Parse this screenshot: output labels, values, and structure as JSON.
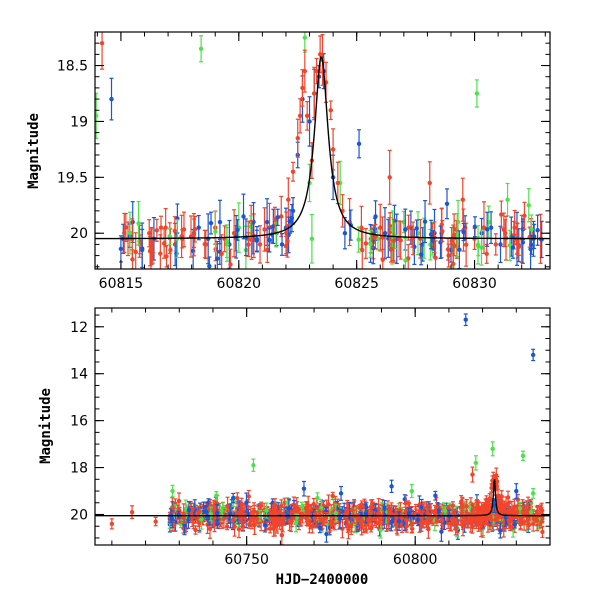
{
  "chart_data": [
    {
      "type": "scatter",
      "panel": "top",
      "title": "",
      "xlabel": "",
      "ylabel": "Magnitude",
      "xlim": [
        60813.9,
        60833.2
      ],
      "ylim": [
        20.32,
        18.2
      ],
      "y_inverted": true,
      "x_ticks": [
        60815,
        60820,
        60825,
        60830
      ],
      "y_ticks": [
        18.5,
        19,
        19.5,
        20
      ],
      "x_tick_labels": [
        "60815",
        "60820",
        "60825",
        "60830"
      ],
      "y_tick_labels": [
        "18.5",
        "19",
        "19.5",
        "20"
      ],
      "grid": false,
      "legend": "none",
      "colors": {
        "blue": "#1a56d6",
        "red": "#f2452b",
        "green": "#4be24b",
        "fit": "#000000"
      },
      "series": [
        {
          "color": "blue",
          "points": [
            [
              60814.6,
              18.8
            ],
            [
              60815.1,
              20.05
            ],
            [
              60815.5,
              19.9
            ],
            [
              60815.9,
              20.15
            ],
            [
              60816.4,
              20.05
            ],
            [
              60817.3,
              20.1
            ],
            [
              60818.3,
              19.95
            ],
            [
              60818.7,
              20.05
            ],
            [
              60819.2,
              19.9
            ],
            [
              60819.6,
              20.1
            ],
            [
              60820.2,
              19.85
            ],
            [
              60820.6,
              20.05
            ],
            [
              60821.2,
              19.9
            ],
            [
              60821.6,
              20.0
            ],
            [
              60822.0,
              19.95
            ],
            [
              60822.3,
              19.8
            ],
            [
              60822.5,
              19.3
            ],
            [
              60822.7,
              18.8
            ],
            [
              60823.0,
              19.0
            ],
            [
              60823.2,
              18.75
            ],
            [
              60823.4,
              18.6
            ],
            [
              60823.6,
              18.55
            ],
            [
              60824.0,
              19.5
            ],
            [
              60824.5,
              20.0
            ],
            [
              60825.1,
              19.2
            ],
            [
              60825.8,
              19.85
            ],
            [
              60826.2,
              20.0
            ],
            [
              60826.7,
              20.05
            ],
            [
              60827.3,
              19.95
            ],
            [
              60827.8,
              20.1
            ],
            [
              60828.3,
              20.0
            ],
            [
              60829.0,
              20.15
            ],
            [
              60829.6,
              19.95
            ],
            [
              60830.3,
              20.0
            ],
            [
              60830.7,
              19.95
            ],
            [
              60831.1,
              20.1
            ],
            [
              60831.8,
              20.05
            ],
            [
              60832.5,
              20.05
            ]
          ]
        },
        {
          "color": "green",
          "points": [
            [
              60813.95,
              18.95
            ],
            [
              60818.4,
              18.35
            ],
            [
              60819.5,
              20.1
            ],
            [
              60820.0,
              19.95
            ],
            [
              60820.3,
              20.15
            ],
            [
              60822.8,
              18.25
            ],
            [
              60823.0,
              19.55
            ],
            [
              60823.1,
              20.05
            ],
            [
              60824.3,
              19.55
            ],
            [
              60825.9,
              20.05
            ],
            [
              60826.5,
              20.1
            ],
            [
              60827.0,
              19.9
            ],
            [
              60827.6,
              20.0
            ],
            [
              60828.2,
              20.05
            ],
            [
              60829.3,
              19.9
            ],
            [
              60830.1,
              18.75
            ],
            [
              60830.6,
              19.9
            ],
            [
              60831.4,
              19.7
            ],
            [
              60832.3,
              19.75
            ]
          ]
        },
        {
          "color": "red",
          "points": [
            [
              60814.2,
              18.3
            ],
            [
              60815.3,
              20.05
            ],
            [
              60815.8,
              20.1
            ],
            [
              60816.2,
              20.0
            ],
            [
              60816.7,
              19.95
            ],
            [
              60817.1,
              20.15
            ],
            [
              60817.6,
              20.05
            ],
            [
              60818.1,
              20.0
            ],
            [
              60818.6,
              20.1
            ],
            [
              60819.0,
              19.95
            ],
            [
              60819.4,
              20.05
            ],
            [
              60819.8,
              20.0
            ],
            [
              60820.4,
              20.05
            ],
            [
              60820.9,
              20.1
            ],
            [
              60821.3,
              19.95
            ],
            [
              60821.8,
              19.85
            ],
            [
              60822.1,
              19.7
            ],
            [
              60822.3,
              19.45
            ],
            [
              60822.5,
              19.15
            ],
            [
              60822.6,
              18.95
            ],
            [
              60822.7,
              18.7
            ],
            [
              60822.8,
              18.55
            ],
            [
              60822.9,
              18.95
            ],
            [
              60823.1,
              19.35
            ],
            [
              60823.2,
              18.75
            ],
            [
              60823.3,
              18.55
            ],
            [
              60823.45,
              18.4
            ],
            [
              60823.55,
              18.45
            ],
            [
              60823.7,
              18.65
            ],
            [
              60823.9,
              18.9
            ],
            [
              60824.0,
              19.25
            ],
            [
              60824.2,
              19.55
            ],
            [
              60824.4,
              19.8
            ],
            [
              60824.7,
              19.9
            ],
            [
              60825.2,
              19.95
            ],
            [
              60825.6,
              20.05
            ],
            [
              60826.0,
              19.95
            ],
            [
              60826.4,
              19.5
            ],
            [
              60826.8,
              20.05
            ],
            [
              60827.2,
              19.95
            ],
            [
              60827.7,
              20.05
            ],
            [
              60828.1,
              19.55
            ],
            [
              60828.6,
              20.0
            ],
            [
              60829.1,
              20.1
            ],
            [
              60829.5,
              19.7
            ],
            [
              60830.0,
              20.05
            ],
            [
              60830.4,
              19.95
            ],
            [
              60830.9,
              20.1
            ],
            [
              60831.3,
              20.0
            ],
            [
              60831.7,
              19.95
            ],
            [
              60832.0,
              20.05
            ],
            [
              60832.4,
              20.0
            ],
            [
              60832.8,
              20.05
            ]
          ]
        }
      ],
      "fit_curve": {
        "type": "lorentzian",
        "baseline": 20.05,
        "peak": 18.42,
        "t0": 60823.5,
        "width": 0.35
      }
    },
    {
      "type": "scatter",
      "panel": "bottom",
      "title": "",
      "xlabel": "HJD−2400000",
      "ylabel": "Magnitude",
      "xlim": [
        60705,
        60840
      ],
      "ylim": [
        21.3,
        11.2
      ],
      "y_inverted": true,
      "x_ticks": [
        60750,
        60800
      ],
      "y_ticks": [
        12,
        14,
        16,
        18,
        20
      ],
      "x_tick_labels": [
        "60750",
        "60800"
      ],
      "y_tick_labels": [
        "12",
        "14",
        "16",
        "18",
        "20"
      ],
      "grid": false,
      "legend": "none",
      "colors": {
        "blue": "#1a56d6",
        "red": "#f2452b",
        "green": "#4be24b",
        "fit": "#000000"
      },
      "outliers": {
        "blue": [
          [
            60815,
            11.7
          ],
          [
            60835,
            13.2
          ],
          [
            60746,
            19.3
          ],
          [
            60767,
            18.9
          ],
          [
            60778,
            19.1
          ],
          [
            60793,
            18.8
          ],
          [
            60806,
            19.2
          ],
          [
            60830,
            19.0
          ]
        ],
        "green": [
          [
            60728,
            19.0
          ],
          [
            60741,
            19.2
          ],
          [
            60752,
            17.9
          ],
          [
            60771,
            19.3
          ],
          [
            60799,
            19.0
          ],
          [
            60818,
            17.8
          ],
          [
            60823,
            17.2
          ],
          [
            60832,
            17.5
          ],
          [
            60835,
            19.1
          ]
        ],
        "red": [
          [
            60710,
            20.4
          ],
          [
            60716,
            19.9
          ],
          [
            60723,
            20.3
          ],
          [
            60758,
            20.6
          ],
          [
            60780,
            20.5
          ],
          [
            60812,
            20.6
          ],
          [
            60817,
            18.3
          ]
        ]
      },
      "dense_band": {
        "x_start": 60727,
        "x_end": 60838,
        "mean": 20.05,
        "scatter": 0.45
      },
      "fit_curve": {
        "type": "lorentzian",
        "baseline": 20.05,
        "peak": 18.42,
        "t0": 60823.5,
        "width": 0.35
      }
    }
  ]
}
